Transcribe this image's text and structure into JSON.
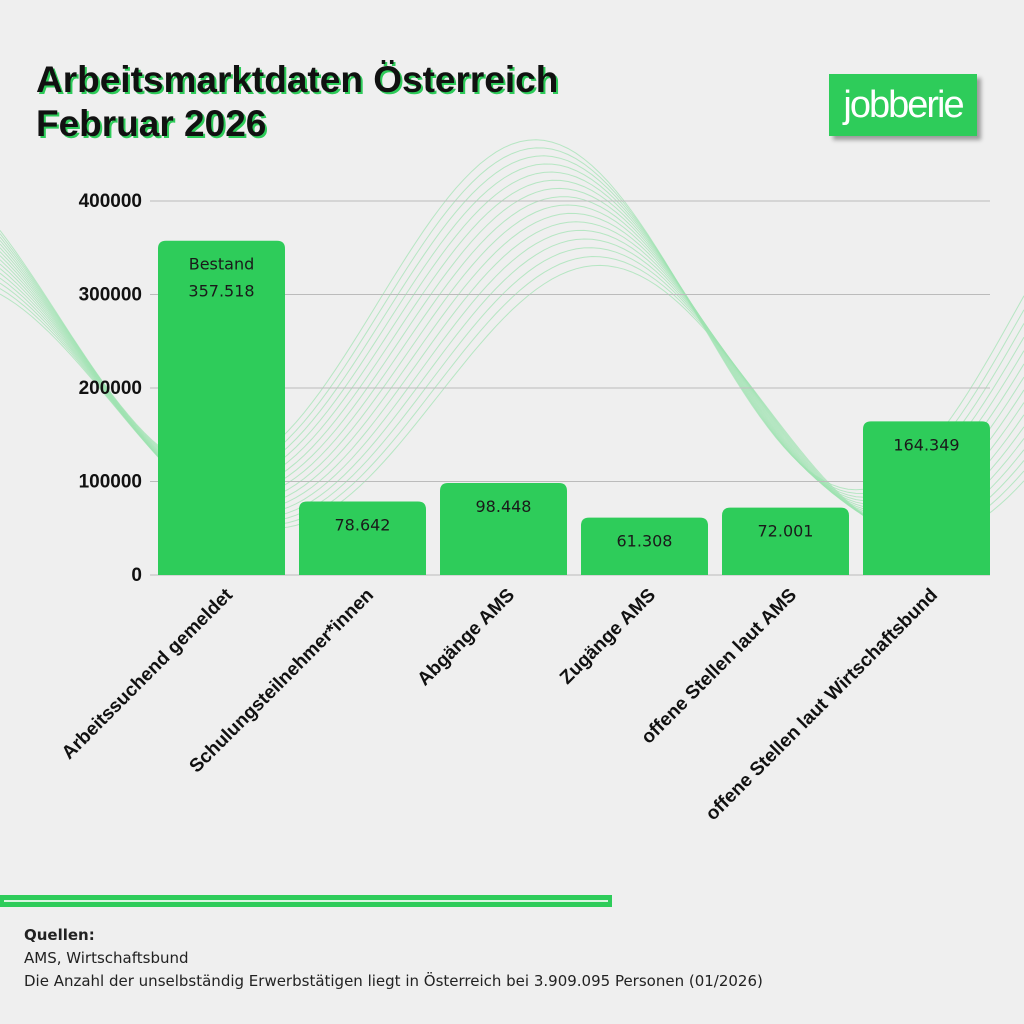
{
  "title_line1": "Arbeitsmarktdaten Österreich",
  "title_line2": "Februar 2026",
  "logo": "jobberie",
  "colors": {
    "bar": "#2ecc5a",
    "background": "#efefef",
    "wave": "#9ee3b0"
  },
  "chart_data": {
    "type": "bar",
    "categories": [
      "Arbeitssuchend gemeldet",
      "Schulungsteilnehmer*innen",
      "Abgänge AMS",
      "Zugänge AMS",
      "offene Stellen laut AMS",
      "offene Stellen laut Wirtschaftsbund"
    ],
    "values": [
      357518,
      78642,
      98448,
      61308,
      72001,
      164349
    ],
    "data_labels": [
      "357.518",
      "78.642",
      "98.448",
      "61.308",
      "72.001",
      "164.349"
    ],
    "annotations": [
      {
        "category": "Arbeitssuchend gemeldet",
        "text": "Bestand"
      }
    ],
    "yticks": [
      "0",
      "100000",
      "200000",
      "300000",
      "400000"
    ],
    "ylim": [
      0,
      400000
    ],
    "grid": true,
    "title": "",
    "xlabel": "",
    "ylabel": ""
  },
  "sources": {
    "heading": "Quellen:",
    "line1": "AMS, Wirtschaftsbund",
    "line2": "Die Anzahl der unselbständig Erwerbstätigen liegt in Österreich bei 3.909.095 Personen (01/2026)"
  }
}
